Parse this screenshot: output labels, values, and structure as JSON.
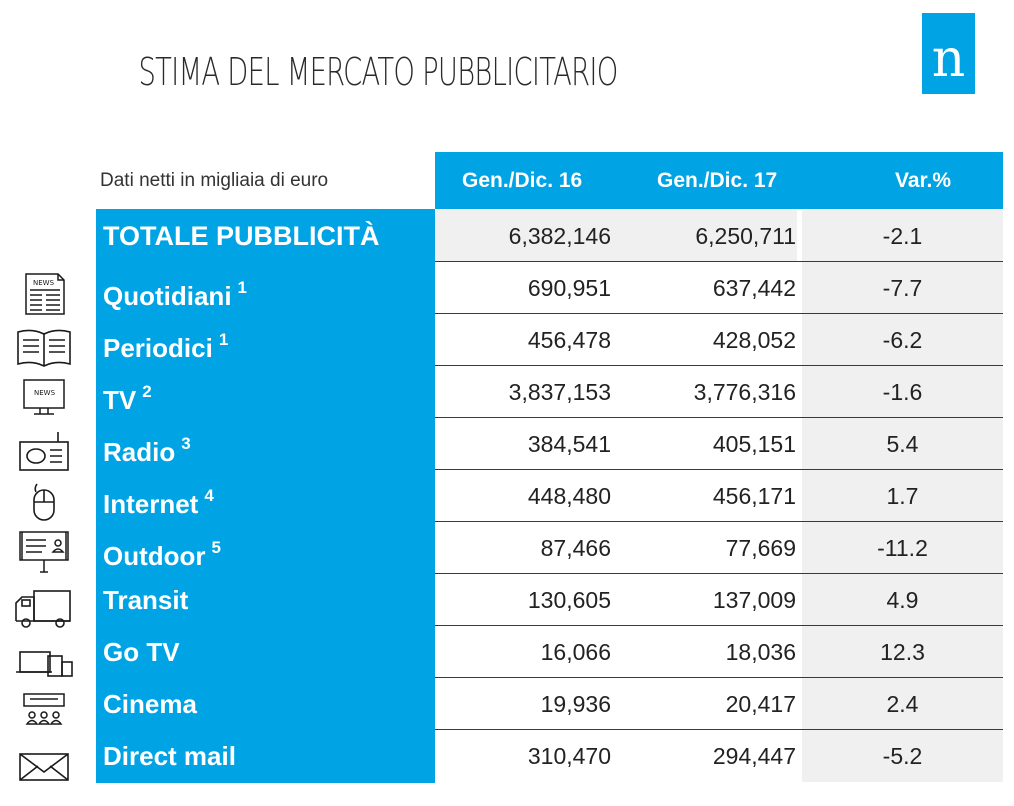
{
  "title": "STIMA DEL MERCATO PUBBLICITARIO",
  "logo_letter": "n",
  "unit_label": "Dati netti in migliaia di euro",
  "columns": {
    "col1": "Gen./Dic. 16",
    "col2": "Gen./Dic. 17",
    "col3": "Var.%"
  },
  "rows": [
    {
      "name": "TOTALE PUBBLICITÀ",
      "note": "",
      "v16": "6,382,146",
      "v17": "6,250,711",
      "var": "-2.1",
      "icon": ""
    },
    {
      "name": "Quotidiani",
      "note": "1",
      "v16": "690,951",
      "v17": "637,442",
      "var": "-7.7",
      "icon": "newspaper-icon",
      "icon_text": "NEWS"
    },
    {
      "name": "Periodici",
      "note": "1",
      "v16": "456,478",
      "v17": "428,052",
      "var": "-6.2",
      "icon": "magazine-icon"
    },
    {
      "name": "TV",
      "note": "2",
      "v16": "3,837,153",
      "v17": "3,776,316",
      "var": "-1.6",
      "icon": "tv-icon",
      "icon_text": "NEWS"
    },
    {
      "name": "Radio",
      "note": "3",
      "v16": "384,541",
      "v17": "405,151",
      "var": "5.4",
      "icon": "radio-icon"
    },
    {
      "name": "Internet",
      "note": "4",
      "v16": "448,480",
      "v17": "456,171",
      "var": "1.7",
      "icon": "mouse-icon"
    },
    {
      "name": "Outdoor",
      "note": "5",
      "v16": "87,466",
      "v17": "77,669",
      "var": "-11.2",
      "icon": "billboard-icon"
    },
    {
      "name": "Transit",
      "note": "",
      "v16": "130,605",
      "v17": "137,009",
      "var": "4.9",
      "icon": "truck-icon"
    },
    {
      "name": "Go TV",
      "note": "",
      "v16": "16,066",
      "v17": "18,036",
      "var": "12.3",
      "icon": "devices-icon"
    },
    {
      "name": "Cinema",
      "note": "",
      "v16": "19,936",
      "v17": "20,417",
      "var": "2.4",
      "icon": "cinema-icon"
    },
    {
      "name": "Direct mail",
      "note": "",
      "v16": "310,470",
      "v17": "294,447",
      "var": "-5.2",
      "icon": "envelope-icon"
    }
  ]
}
